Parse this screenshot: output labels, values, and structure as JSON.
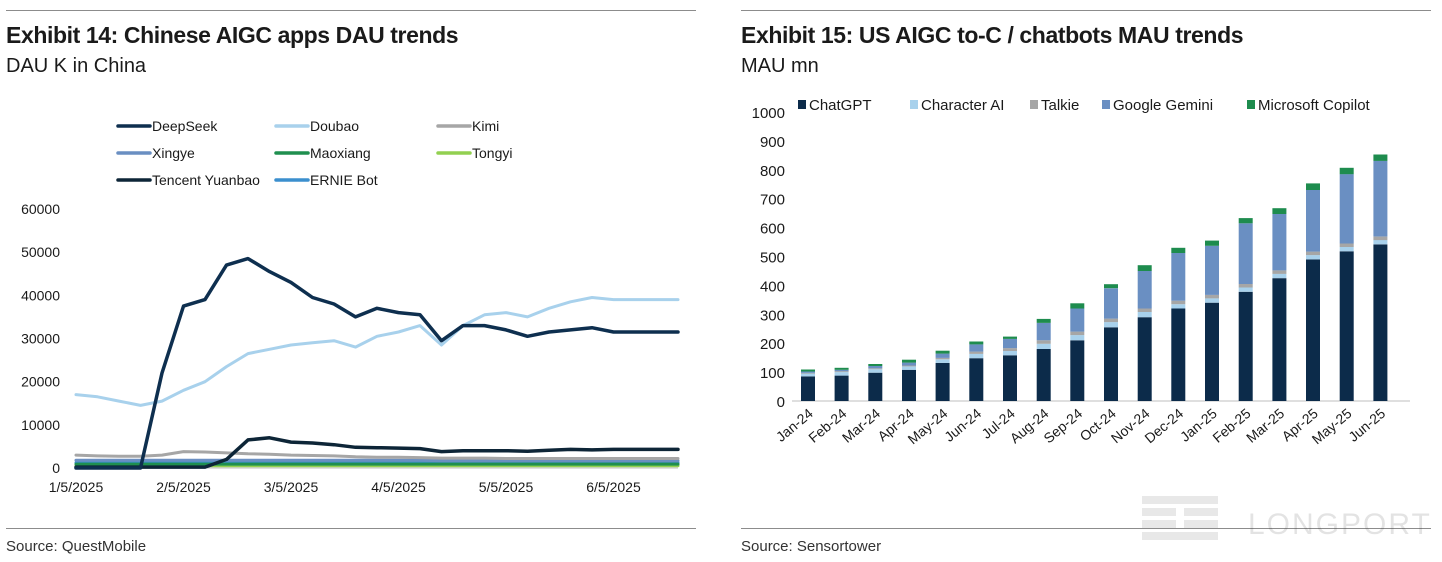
{
  "left": {
    "title": "Exhibit 14: Chinese AIGC apps DAU trends",
    "subtitle": "DAU K in China",
    "source": "Source: QuestMobile"
  },
  "right": {
    "title": "Exhibit 15: US AIGC to-C / chatbots MAU trends",
    "subtitle": "MAU mn",
    "source": "Source: Sensortower"
  },
  "watermark": "LONGPORT",
  "chart_data": [
    {
      "type": "line",
      "title": "Exhibit 14: Chinese AIGC apps DAU trends",
      "subtitle": "DAU K in China",
      "ylim": [
        0,
        60000
      ],
      "yticks": [
        0,
        10000,
        20000,
        30000,
        40000,
        50000,
        60000
      ],
      "xticks": [
        "1/5/2025",
        "2/5/2025",
        "3/5/2025",
        "4/5/2025",
        "5/5/2025",
        "6/5/2025"
      ],
      "xtick_index": [
        0,
        5,
        10,
        15,
        20,
        25
      ],
      "n_points": 29,
      "grid": false,
      "legend_position": "top",
      "series": [
        {
          "name": "DeepSeek",
          "color": "#0e2f4f",
          "width": 3.5,
          "values": [
            0,
            0,
            0,
            0,
            22000,
            37500,
            39000,
            47000,
            48500,
            45500,
            43000,
            39500,
            38000,
            35000,
            37000,
            36000,
            35500,
            29500,
            33000,
            33000,
            32000,
            30500,
            31500,
            32000,
            32500,
            31500,
            31500,
            31500,
            31500
          ]
        },
        {
          "name": "Doubao",
          "color": "#a8d1ec",
          "width": 3,
          "values": [
            17000,
            16500,
            15500,
            14500,
            15500,
            18000,
            20000,
            23500,
            26500,
            27500,
            28500,
            29000,
            29500,
            28000,
            30500,
            31500,
            33000,
            28500,
            33000,
            35500,
            36000,
            35000,
            37000,
            38500,
            39500,
            39000,
            39000,
            39000,
            39000
          ]
        },
        {
          "name": "Kimi",
          "color": "#a6a6a6",
          "width": 3,
          "values": [
            3000,
            2800,
            2700,
            2700,
            3000,
            3800,
            3700,
            3500,
            3300,
            3200,
            3000,
            2900,
            2800,
            2600,
            2500,
            2500,
            2400,
            2300,
            2300,
            2300,
            2200,
            2200,
            2200,
            2200,
            2200,
            2200,
            2200,
            2200,
            2200
          ]
        },
        {
          "name": "Xingye",
          "color": "#6a8fc2",
          "width": 3,
          "values": [
            1800,
            1800,
            1800,
            1800,
            1800,
            1800,
            1800,
            1800,
            1800,
            1800,
            1800,
            1800,
            1800,
            1800,
            1800,
            1800,
            1800,
            1700,
            1700,
            1700,
            1700,
            1700,
            1700,
            1700,
            1700,
            1700,
            1700,
            1700,
            1700
          ]
        },
        {
          "name": "Maoxiang",
          "color": "#1f8f4f",
          "width": 3,
          "values": [
            900,
            900,
            900,
            900,
            900,
            900,
            900,
            900,
            900,
            900,
            900,
            900,
            900,
            900,
            900,
            900,
            900,
            900,
            900,
            900,
            900,
            900,
            900,
            900,
            900,
            900,
            900,
            900,
            900
          ]
        },
        {
          "name": "Tongyi",
          "color": "#92d050",
          "width": 3,
          "values": [
            500,
            500,
            500,
            500,
            500,
            500,
            500,
            500,
            500,
            500,
            500,
            500,
            500,
            500,
            500,
            500,
            500,
            500,
            500,
            500,
            500,
            500,
            500,
            500,
            500,
            500,
            500,
            500,
            500
          ]
        },
        {
          "name": "Tencent Yuanbao",
          "color": "#0d2537",
          "width": 3.5,
          "values": [
            200,
            200,
            200,
            200,
            200,
            200,
            200,
            2000,
            6500,
            7000,
            6000,
            5800,
            5400,
            4800,
            4700,
            4600,
            4500,
            3800,
            4000,
            4000,
            4000,
            3900,
            4100,
            4300,
            4200,
            4300,
            4300,
            4300,
            4300
          ]
        },
        {
          "name": "ERNIE Bot",
          "color": "#3b8fce",
          "width": 3,
          "values": [
            1200,
            1200,
            1200,
            1200,
            1200,
            1200,
            1200,
            1200,
            1200,
            1200,
            1200,
            1200,
            1200,
            1200,
            1200,
            1200,
            1200,
            1200,
            1200,
            1200,
            1200,
            1200,
            1200,
            1200,
            1200,
            1200,
            1200,
            1200,
            1200
          ]
        }
      ]
    },
    {
      "type": "bar",
      "stacked": true,
      "title": "Exhibit 15: US AIGC to-C / chatbots MAU trends",
      "subtitle": "MAU mn",
      "ylim": [
        0,
        1000
      ],
      "yticks": [
        0,
        100,
        200,
        300,
        400,
        500,
        600,
        700,
        800,
        900,
        1000
      ],
      "grid": false,
      "legend_position": "top",
      "categories": [
        "Jan-24",
        "Feb-24",
        "Mar-24",
        "Apr-24",
        "May-24",
        "Jun-24",
        "Jul-24",
        "Aug-24",
        "Sep-24",
        "Oct-24",
        "Nov-24",
        "Dec-24",
        "Jan-25",
        "Feb-25",
        "Mar-25",
        "Apr-25",
        "May-25",
        "Jun-25"
      ],
      "series": [
        {
          "name": "ChatGPT",
          "color": "#0c2b4a",
          "values": [
            85,
            88,
            98,
            108,
            132,
            148,
            158,
            180,
            210,
            255,
            290,
            320,
            340,
            378,
            425,
            490,
            518,
            542
          ]
        },
        {
          "name": "Character AI",
          "color": "#a8d1ec",
          "values": [
            10,
            12,
            12,
            12,
            12,
            15,
            15,
            18,
            18,
            18,
            18,
            15,
            15,
            15,
            15,
            15,
            15,
            15
          ]
        },
        {
          "name": "Talkie",
          "color": "#a6a6a6",
          "values": [
            2,
            3,
            3,
            3,
            5,
            8,
            10,
            12,
            12,
            12,
            12,
            12,
            12,
            12,
            12,
            12,
            12,
            12
          ]
        },
        {
          "name": "Google Gemini",
          "color": "#6a8fc2",
          "values": [
            5,
            5,
            8,
            10,
            15,
            25,
            32,
            60,
            80,
            105,
            130,
            165,
            170,
            210,
            195,
            213,
            240,
            262
          ]
        },
        {
          "name": "Microsoft Copilot",
          "color": "#1e8c4e",
          "values": [
            7,
            7,
            7,
            10,
            10,
            10,
            8,
            14,
            18,
            14,
            20,
            18,
            18,
            18,
            20,
            23,
            22,
            22
          ]
        }
      ]
    }
  ]
}
